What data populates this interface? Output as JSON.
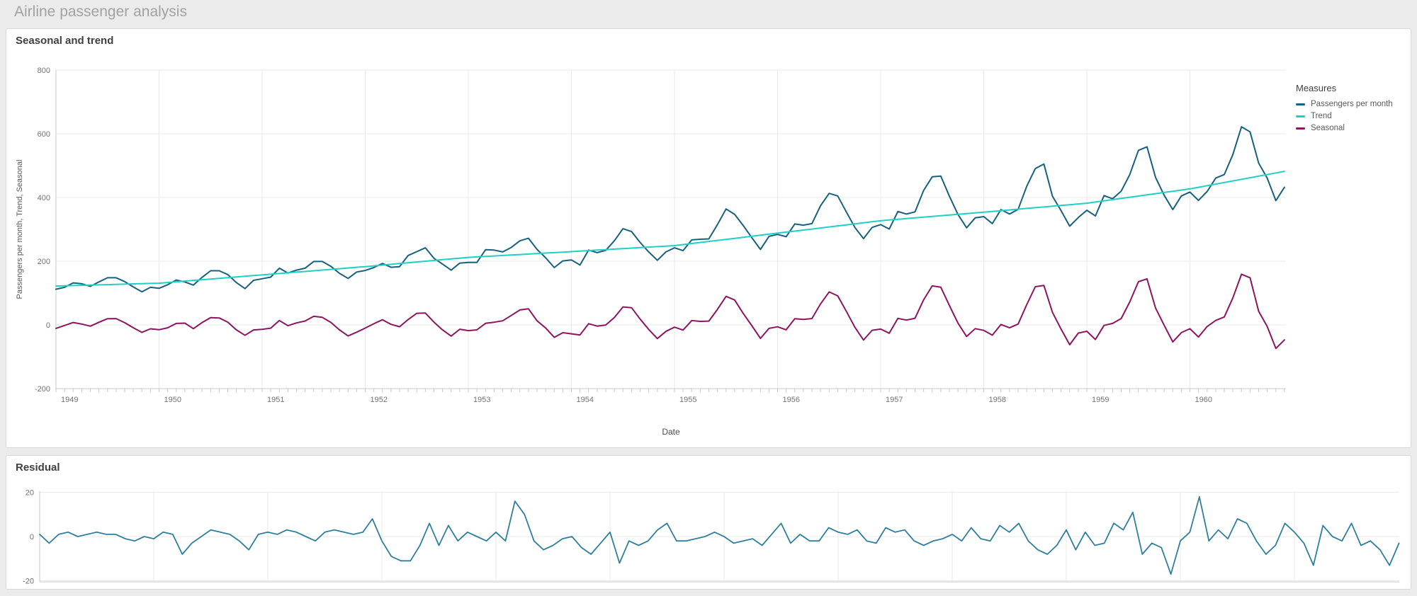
{
  "page": {
    "title": "Airline passenger analysis"
  },
  "colors": {
    "passengers": "#17617e",
    "trend": "#1fd0c5",
    "seasonal": "#8d155f",
    "residual": "#2e7f9e",
    "grid": "#e9e9e9",
    "axis": "#c9c9c9",
    "page_background": "#ebebeb",
    "card_background": "#ffffff"
  },
  "chart_data": [
    {
      "type": "line",
      "title": "Seasonal and trend",
      "xlabel": "Date",
      "ylabel": "Passengers per month, Trend, Seasonal",
      "legend_title": "Measures",
      "legend_position": "right",
      "x_frequency": "monthly",
      "x_start": "1949-01",
      "x_end": "1960-12",
      "x_ticks": [
        "1949",
        "1950",
        "1951",
        "1952",
        "1953",
        "1954",
        "1955",
        "1956",
        "1957",
        "1958",
        "1959",
        "1960"
      ],
      "y_ticks": [
        "800",
        "600",
        "400",
        "200",
        "0",
        "-200"
      ],
      "ylim": [
        -200,
        800
      ],
      "grid": true,
      "series": [
        {
          "name": "Passengers per month",
          "color": "#17617e",
          "values": [
            112,
            118,
            132,
            129,
            121,
            135,
            148,
            148,
            136,
            119,
            104,
            118,
            115,
            126,
            141,
            135,
            125,
            149,
            170,
            170,
            158,
            133,
            114,
            140,
            145,
            150,
            178,
            163,
            172,
            178,
            199,
            199,
            184,
            162,
            146,
            166,
            171,
            180,
            193,
            181,
            183,
            218,
            230,
            242,
            209,
            191,
            172,
            194,
            196,
            196,
            236,
            235,
            229,
            243,
            264,
            272,
            237,
            211,
            180,
            201,
            204,
            188,
            235,
            227,
            234,
            264,
            302,
            293,
            259,
            229,
            203,
            229,
            242,
            233,
            267,
            269,
            270,
            315,
            364,
            347,
            312,
            274,
            237,
            278,
            284,
            277,
            317,
            313,
            318,
            374,
            413,
            405,
            355,
            306,
            271,
            306,
            315,
            301,
            356,
            348,
            355,
            422,
            465,
            467,
            404,
            347,
            305,
            336,
            340,
            318,
            362,
            348,
            363,
            435,
            491,
            505,
            404,
            359,
            310,
            337,
            360,
            342,
            406,
            396,
            420,
            472,
            548,
            559,
            463,
            407,
            362,
            405,
            417,
            391,
            419,
            461,
            472,
            535,
            622,
            606,
            508,
            461,
            390,
            432
          ]
        },
        {
          "name": "Trend",
          "color": "#1fd0c5",
          "values": [
            122,
            122.8,
            123.5,
            124.3,
            125,
            125.8,
            126.5,
            127.3,
            128,
            128.8,
            129.5,
            130.3,
            131,
            133.2,
            135.3,
            137.5,
            139.7,
            141.8,
            144,
            146.2,
            148.3,
            150.5,
            152.7,
            154.8,
            157,
            159.2,
            161.3,
            163.5,
            165.7,
            167.8,
            170,
            172.2,
            174.3,
            176.5,
            178.7,
            180.8,
            183,
            185.4,
            187.8,
            190.3,
            192.7,
            195.1,
            197.5,
            199.9,
            202.3,
            204.8,
            207.2,
            209.6,
            212,
            213.5,
            215,
            216.5,
            218,
            219.5,
            221,
            222.5,
            224,
            225.5,
            227,
            228.5,
            230,
            231.6,
            233.2,
            234.8,
            236.3,
            237.9,
            239.5,
            241.1,
            242.7,
            244.3,
            245.8,
            247.4,
            249,
            252.3,
            255.5,
            258.8,
            262,
            265.3,
            268.5,
            271.8,
            275,
            278.3,
            281.5,
            284.8,
            288,
            291.3,
            294.5,
            297.8,
            301,
            304.3,
            307.5,
            310.8,
            314,
            317.3,
            320.5,
            323.8,
            327,
            329.3,
            331.5,
            333.8,
            336,
            338.3,
            340.5,
            342.8,
            345,
            347.3,
            349.5,
            351.8,
            354,
            356.3,
            358.7,
            361,
            363.3,
            365.7,
            368,
            370.3,
            372.7,
            375,
            377.3,
            379.7,
            382,
            385.8,
            389.5,
            393.3,
            397,
            400.8,
            404.5,
            408.3,
            412,
            415.8,
            419.5,
            423.3,
            427,
            432,
            437,
            442,
            447,
            452,
            457,
            462,
            467,
            472,
            477,
            482
          ]
        },
        {
          "name": "Seasonal",
          "color": "#8d155f",
          "values": [
            -11,
            -1.8,
            7.5,
            2.7,
            -4,
            8.2,
            19.5,
            19.7,
            7,
            -8.8,
            -23.5,
            -12.3,
            -15,
            -9.2,
            4.7,
            5.5,
            -11.7,
            7.2,
            23,
            21.8,
            8.7,
            -15.5,
            -32.7,
            -15.8,
            -14,
            -10.2,
            13.7,
            -2.5,
            6.3,
            12.2,
            27,
            23.8,
            7.7,
            -15.5,
            -34.7,
            -22.8,
            -10,
            3.6,
            16.2,
            1.7,
            -5.7,
            16.9,
            36.5,
            37.1,
            8.7,
            -15.8,
            -35.2,
            -13.6,
            -18,
            -15.5,
            5,
            8.5,
            13,
            29.5,
            47,
            50.5,
            13,
            -9.5,
            -39,
            -24.5,
            -28,
            -31.6,
            3.8,
            -3.8,
            -0.3,
            23.1,
            56.5,
            53.9,
            18.3,
            -14.3,
            -42.8,
            -20.4,
            -7,
            -16.3,
            13.5,
            11.2,
            12,
            48.7,
            89.5,
            78.2,
            36,
            -2.3,
            -42.5,
            -10.8,
            -6,
            -15.3,
            19.5,
            17.2,
            20,
            65.7,
            103.5,
            91.2,
            43,
            -7.3,
            -47.5,
            -16.8,
            -13,
            -26.3,
            20.5,
            15.2,
            21,
            78.7,
            122.5,
            118.2,
            61,
            5.7,
            -36.5,
            -11.8,
            -17,
            -32.3,
            1.3,
            -9,
            2.7,
            63.3,
            120,
            123.7,
            39.3,
            -13,
            -62.3,
            -25.7,
            -20,
            -45.8,
            -1.5,
            4.7,
            20,
            72.2,
            135.5,
            144.7,
            53,
            -0.8,
            -53.5,
            -24.3,
            -12,
            -38,
            -5,
            14,
            25,
            85,
            159,
            148,
            43,
            -5,
            -74,
            -47
          ]
        }
      ]
    },
    {
      "type": "line",
      "title": "Residual",
      "x_frequency": "monthly",
      "x_start": "1949-01",
      "x_end": "1960-12",
      "y_ticks": [
        "20",
        "0",
        "-20"
      ],
      "ylim": [
        -21,
        21
      ],
      "grid": true,
      "series": [
        {
          "name": "Residual",
          "color": "#2e7f9e",
          "values": [
            1,
            -3,
            1,
            2,
            0,
            1,
            2,
            1,
            1,
            -1,
            -2,
            0,
            -1,
            2,
            1,
            -8,
            -3,
            0,
            3,
            2,
            1,
            -2,
            -6,
            1,
            2,
            1,
            3,
            2,
            0,
            -2,
            2,
            3,
            2,
            1,
            2,
            8,
            -2,
            -9,
            -11,
            -11,
            -4,
            6,
            -4,
            5,
            -2,
            2,
            0,
            -2,
            2,
            -2,
            16,
            10,
            -2,
            -6,
            -4,
            -1,
            0,
            -5,
            -8,
            -3,
            2,
            -12,
            -2,
            -4,
            -2,
            3,
            6,
            -2,
            -2,
            -1,
            0,
            2,
            0,
            -3,
            -2,
            -1,
            -4,
            1,
            6,
            -3,
            1,
            -2,
            -2,
            4,
            2,
            1,
            3,
            -2,
            -3,
            4,
            2,
            3,
            -2,
            -4,
            -2,
            -1,
            1,
            -2,
            4,
            -1,
            -2,
            5,
            2,
            6,
            -2,
            -6,
            -8,
            -4,
            3,
            -6,
            2,
            -4,
            -3,
            6,
            3,
            11,
            -8,
            -3,
            -5,
            -17,
            -2,
            2,
            18,
            -2,
            3,
            -1,
            8,
            6,
            -2,
            -8,
            -4,
            6,
            2,
            -3,
            -13,
            5,
            0,
            -2,
            6,
            -4,
            -2,
            -6,
            -13,
            -3
          ]
        }
      ]
    }
  ]
}
